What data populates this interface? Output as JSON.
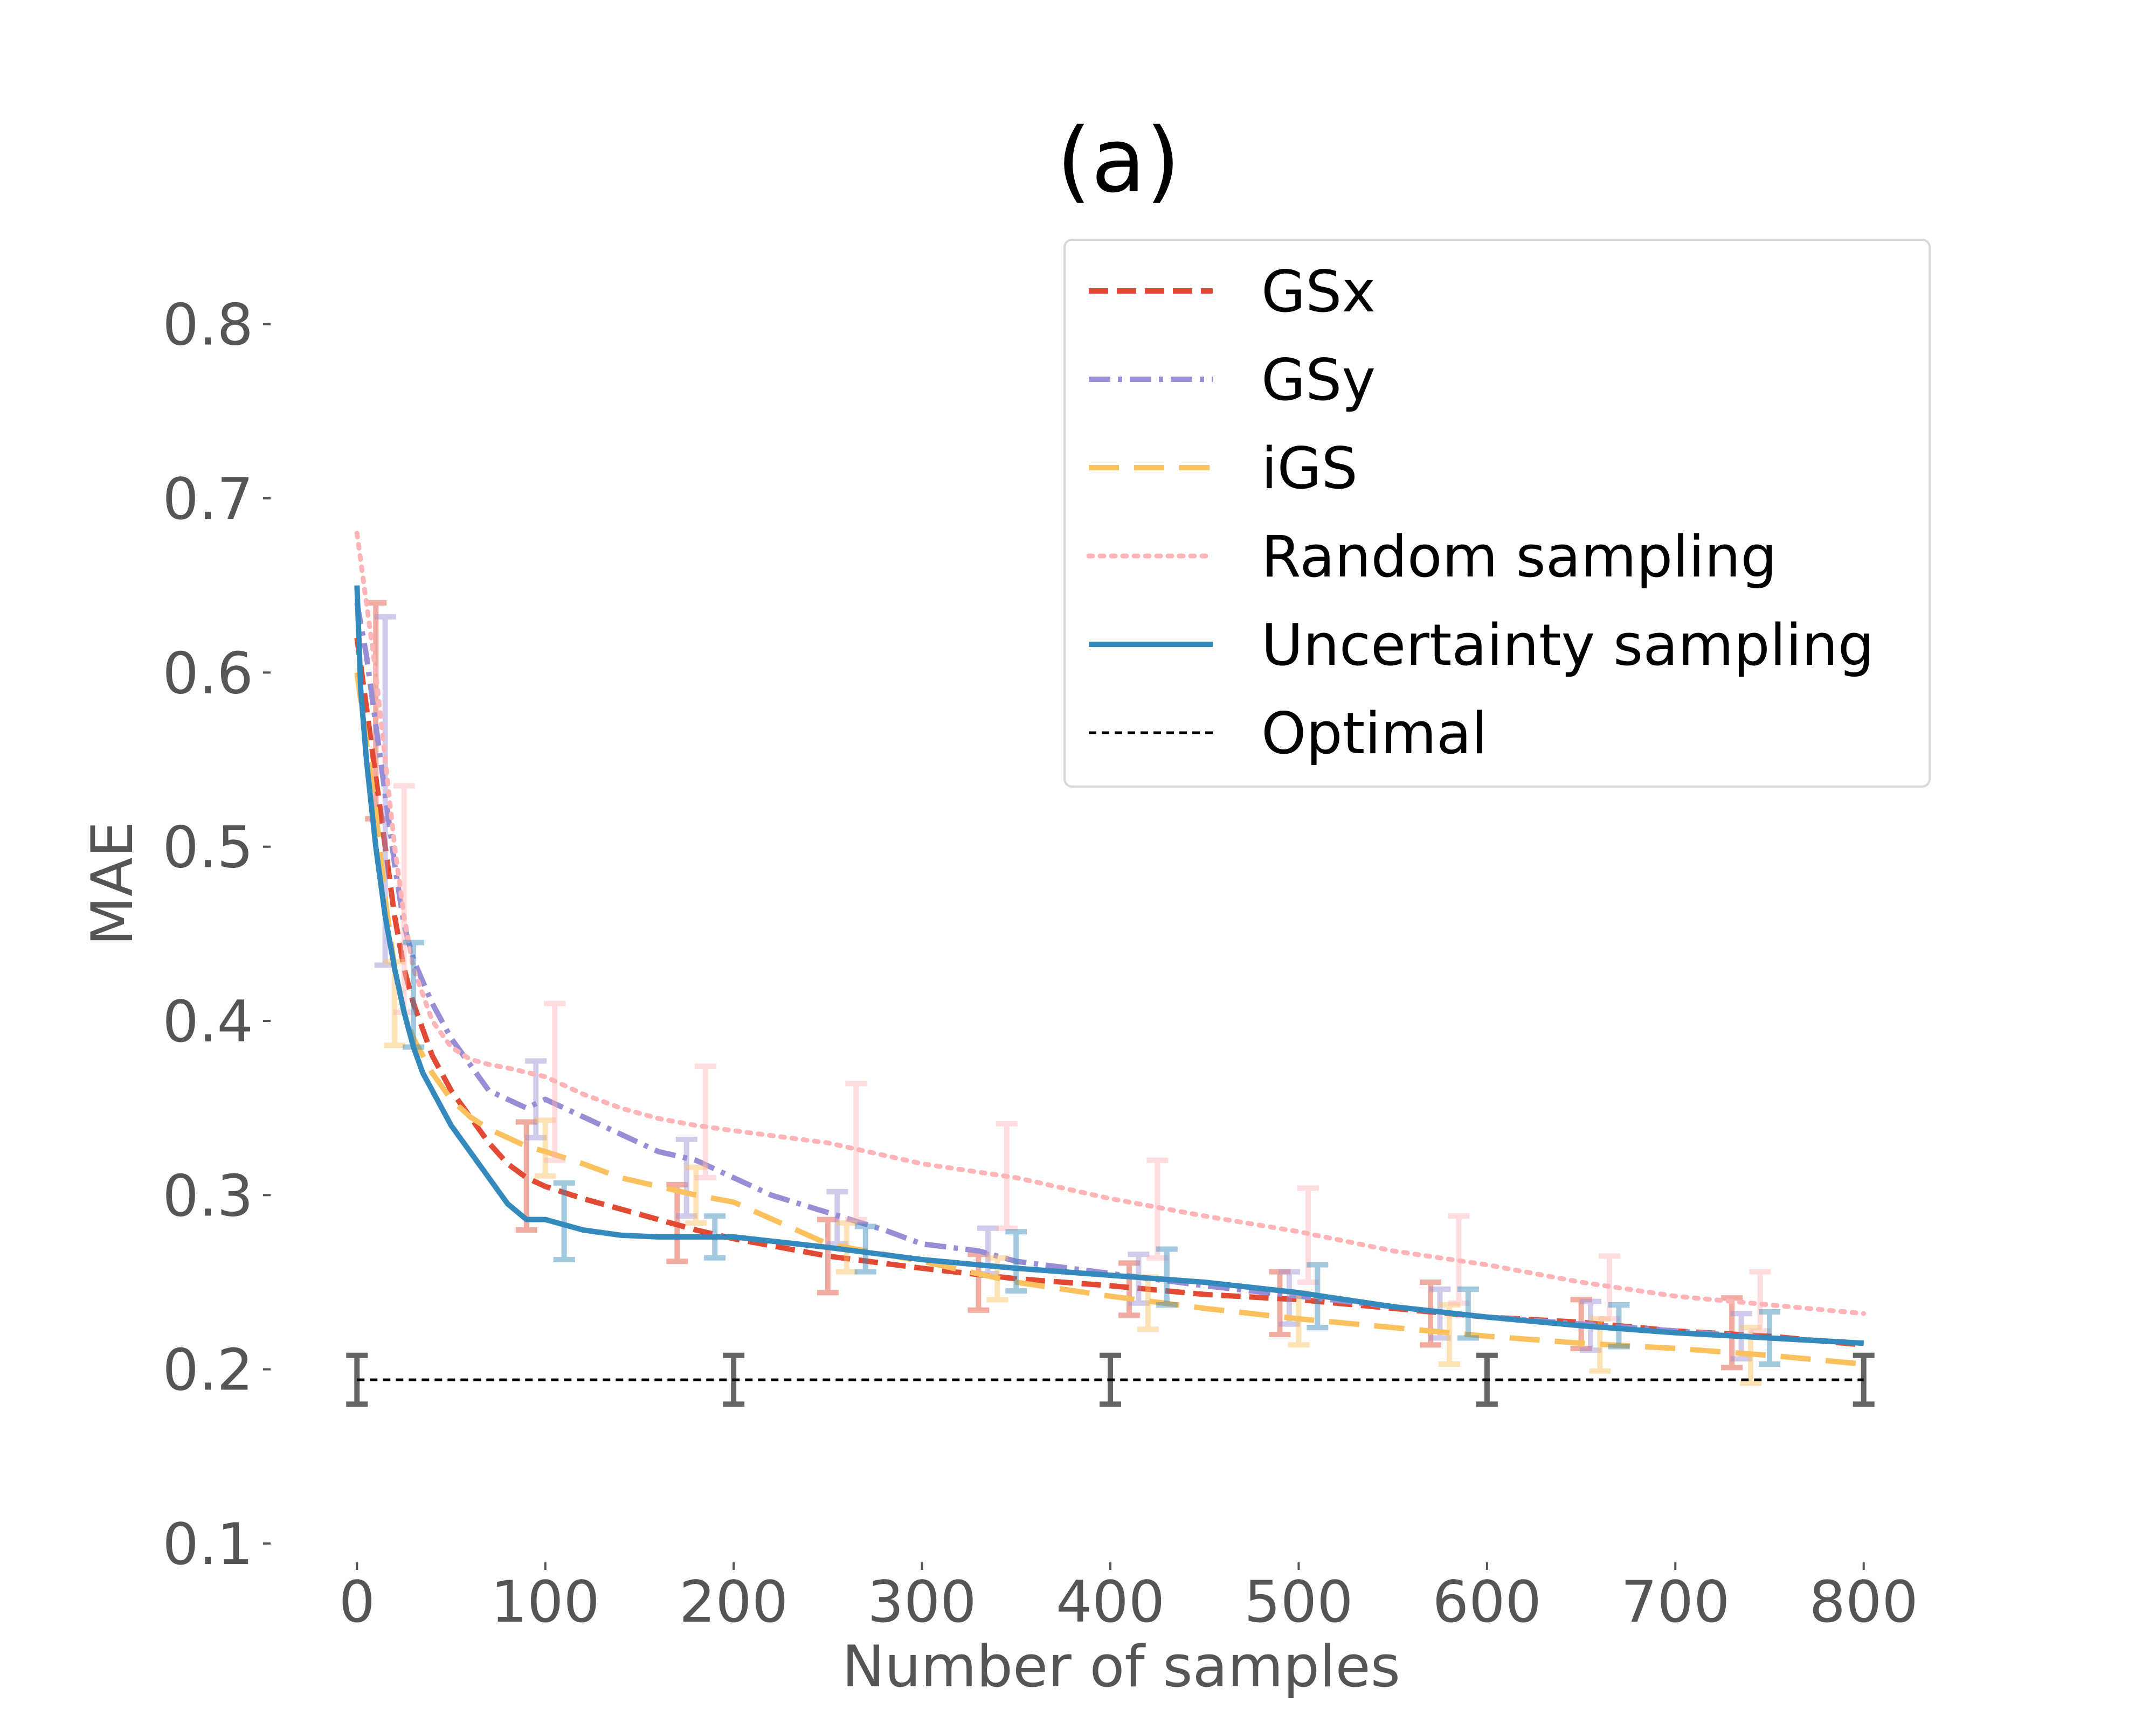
{
  "chart_data": {
    "type": "line",
    "title": "(a)",
    "xlabel": "Number of samples",
    "ylabel": "MAE",
    "xlim": [
      -35,
      835
    ],
    "ylim": [
      0.1,
      0.85
    ],
    "x_ticks": [
      0,
      100,
      200,
      300,
      400,
      500,
      600,
      700,
      800
    ],
    "y_ticks": [
      0.1,
      0.2,
      0.3,
      0.4,
      0.5,
      0.6,
      0.7,
      0.8
    ],
    "x_tick_labels": [
      "0",
      "100",
      "200",
      "300",
      "400",
      "500",
      "600",
      "700",
      "800"
    ],
    "y_tick_labels": [
      "0.1",
      "0.2",
      "0.3",
      "0.4",
      "0.5",
      "0.6",
      "0.7",
      "0.8"
    ],
    "grid": false,
    "legend_position": "upper right",
    "series": [
      {
        "name": "GSx",
        "color": "#E24A33",
        "dash": "dashed",
        "x": [
          0,
          5,
          10,
          15,
          20,
          25,
          30,
          40,
          50,
          60,
          70,
          80,
          90,
          100,
          120,
          140,
          160,
          180,
          200,
          250,
          300,
          350,
          400,
          450,
          500,
          550,
          600,
          650,
          700,
          750,
          800
        ],
        "y": [
          0.62,
          0.58,
          0.54,
          0.5,
          0.46,
          0.43,
          0.41,
          0.38,
          0.36,
          0.345,
          0.33,
          0.318,
          0.31,
          0.305,
          0.298,
          0.292,
          0.286,
          0.28,
          0.275,
          0.265,
          0.258,
          0.252,
          0.248,
          0.243,
          0.24,
          0.235,
          0.23,
          0.227,
          0.222,
          0.219,
          0.214
        ],
        "error_bars": [
          {
            "x": 10,
            "y": 0.578,
            "err": 0.062
          },
          {
            "x": 90,
            "y": 0.311,
            "err": 0.031
          },
          {
            "x": 170,
            "y": 0.284,
            "err": 0.022
          },
          {
            "x": 250,
            "y": 0.265,
            "err": 0.021
          },
          {
            "x": 330,
            "y": 0.25,
            "err": 0.016
          },
          {
            "x": 410,
            "y": 0.246,
            "err": 0.015
          },
          {
            "x": 490,
            "y": 0.238,
            "err": 0.018
          },
          {
            "x": 570,
            "y": 0.232,
            "err": 0.018
          },
          {
            "x": 650,
            "y": 0.226,
            "err": 0.014
          },
          {
            "x": 730,
            "y": 0.221,
            "err": 0.02
          }
        ]
      },
      {
        "name": "GSy",
        "color": "#988ED5",
        "dash": "dashdot",
        "x": [
          0,
          5,
          10,
          15,
          20,
          25,
          30,
          40,
          50,
          60,
          70,
          80,
          90,
          100,
          120,
          140,
          160,
          180,
          200,
          220,
          250,
          280,
          300,
          330,
          350,
          400,
          450,
          500,
          550,
          600,
          650,
          700,
          750,
          800
        ],
        "y": [
          0.64,
          0.61,
          0.57,
          0.53,
          0.49,
          0.455,
          0.435,
          0.41,
          0.39,
          0.375,
          0.36,
          0.355,
          0.35,
          0.355,
          0.345,
          0.335,
          0.325,
          0.32,
          0.31,
          0.3,
          0.29,
          0.28,
          0.272,
          0.268,
          0.262,
          0.255,
          0.248,
          0.242,
          0.236,
          0.23,
          0.226,
          0.222,
          0.218,
          0.215
        ],
        "error_bars": [
          {
            "x": 15,
            "y": 0.532,
            "err": 0.1
          },
          {
            "x": 95,
            "y": 0.355,
            "err": 0.022
          },
          {
            "x": 175,
            "y": 0.31,
            "err": 0.022
          },
          {
            "x": 255,
            "y": 0.287,
            "err": 0.015
          },
          {
            "x": 335,
            "y": 0.268,
            "err": 0.013
          },
          {
            "x": 415,
            "y": 0.252,
            "err": 0.014
          },
          {
            "x": 495,
            "y": 0.241,
            "err": 0.015
          },
          {
            "x": 575,
            "y": 0.232,
            "err": 0.014
          },
          {
            "x": 655,
            "y": 0.225,
            "err": 0.014
          },
          {
            "x": 735,
            "y": 0.219,
            "err": 0.013
          }
        ]
      },
      {
        "name": "iGS",
        "color": "#FBC15E",
        "dash": "longdash",
        "x": [
          0,
          5,
          10,
          15,
          20,
          25,
          30,
          40,
          50,
          60,
          70,
          80,
          90,
          100,
          120,
          140,
          160,
          180,
          200,
          250,
          300,
          350,
          400,
          450,
          500,
          550,
          600,
          650,
          700,
          750,
          800
        ],
        "y": [
          0.6,
          0.56,
          0.52,
          0.47,
          0.43,
          0.405,
          0.39,
          0.37,
          0.355,
          0.345,
          0.338,
          0.333,
          0.328,
          0.325,
          0.318,
          0.31,
          0.305,
          0.3,
          0.296,
          0.272,
          0.262,
          0.25,
          0.242,
          0.235,
          0.229,
          0.224,
          0.219,
          0.215,
          0.212,
          0.208,
          0.203
        ],
        "error_bars": [
          {
            "x": 20,
            "y": 0.41,
            "err": 0.024
          },
          {
            "x": 100,
            "y": 0.327,
            "err": 0.016
          },
          {
            "x": 180,
            "y": 0.3,
            "err": 0.016
          },
          {
            "x": 260,
            "y": 0.27,
            "err": 0.014
          },
          {
            "x": 340,
            "y": 0.252,
            "err": 0.012
          },
          {
            "x": 420,
            "y": 0.238,
            "err": 0.015
          },
          {
            "x": 500,
            "y": 0.229,
            "err": 0.015
          },
          {
            "x": 580,
            "y": 0.22,
            "err": 0.017
          },
          {
            "x": 660,
            "y": 0.214,
            "err": 0.015
          },
          {
            "x": 740,
            "y": 0.208,
            "err": 0.016
          }
        ]
      },
      {
        "name": "Random sampling",
        "color": "#FFB5B8",
        "dash": "dotted",
        "x": [
          0,
          5,
          10,
          15,
          20,
          25,
          30,
          40,
          50,
          60,
          70,
          80,
          100,
          120,
          140,
          160,
          180,
          200,
          250,
          300,
          350,
          400,
          450,
          500,
          550,
          600,
          650,
          700,
          750,
          800
        ],
        "y": [
          0.68,
          0.64,
          0.6,
          0.55,
          0.5,
          0.46,
          0.43,
          0.4,
          0.385,
          0.378,
          0.375,
          0.373,
          0.368,
          0.358,
          0.35,
          0.344,
          0.34,
          0.337,
          0.33,
          0.318,
          0.31,
          0.298,
          0.288,
          0.279,
          0.268,
          0.26,
          0.25,
          0.242,
          0.237,
          0.232
        ],
        "error_bars": [
          {
            "x": 25,
            "y": 0.47,
            "err": 0.065
          },
          {
            "x": 105,
            "y": 0.365,
            "err": 0.045
          },
          {
            "x": 185,
            "y": 0.342,
            "err": 0.032
          },
          {
            "x": 265,
            "y": 0.325,
            "err": 0.039
          },
          {
            "x": 345,
            "y": 0.311,
            "err": 0.03
          },
          {
            "x": 425,
            "y": 0.292,
            "err": 0.028
          },
          {
            "x": 505,
            "y": 0.277,
            "err": 0.027
          },
          {
            "x": 585,
            "y": 0.263,
            "err": 0.025
          },
          {
            "x": 665,
            "y": 0.247,
            "err": 0.018
          },
          {
            "x": 745,
            "y": 0.239,
            "err": 0.017
          }
        ]
      },
      {
        "name": "Uncertainty sampling",
        "color": "#348ABD",
        "dash": "solid",
        "x": [
          0,
          2,
          5,
          10,
          15,
          20,
          25,
          30,
          35,
          40,
          50,
          60,
          70,
          80,
          90,
          100,
          120,
          140,
          160,
          180,
          200,
          250,
          300,
          350,
          400,
          450,
          500,
          550,
          600,
          650,
          700,
          750,
          800
        ],
        "y": [
          0.65,
          0.59,
          0.55,
          0.5,
          0.46,
          0.43,
          0.405,
          0.385,
          0.37,
          0.36,
          0.34,
          0.325,
          0.31,
          0.295,
          0.286,
          0.286,
          0.28,
          0.277,
          0.276,
          0.276,
          0.276,
          0.27,
          0.263,
          0.258,
          0.254,
          0.25,
          0.244,
          0.236,
          0.23,
          0.225,
          0.221,
          0.218,
          0.215
        ],
        "error_bars": [
          {
            "x": 30,
            "y": 0.415,
            "err": 0.03
          },
          {
            "x": 110,
            "y": 0.285,
            "err": 0.022
          },
          {
            "x": 190,
            "y": 0.276,
            "err": 0.012
          },
          {
            "x": 270,
            "y": 0.269,
            "err": 0.013
          },
          {
            "x": 350,
            "y": 0.262,
            "err": 0.017
          },
          {
            "x": 430,
            "y": 0.253,
            "err": 0.016
          },
          {
            "x": 510,
            "y": 0.242,
            "err": 0.018
          },
          {
            "x": 590,
            "y": 0.232,
            "err": 0.014
          },
          {
            "x": 670,
            "y": 0.225,
            "err": 0.012
          },
          {
            "x": 750,
            "y": 0.218,
            "err": 0.015
          }
        ]
      },
      {
        "name": "Optimal",
        "color": "#000000",
        "dash": "shortdash",
        "x": [
          0,
          800
        ],
        "y": [
          0.194,
          0.194
        ],
        "error_color": "#555555",
        "error_bars": [
          {
            "x": 0,
            "y": 0.194,
            "err": 0.014
          },
          {
            "x": 200,
            "y": 0.194,
            "err": 0.014
          },
          {
            "x": 400,
            "y": 0.194,
            "err": 0.014
          },
          {
            "x": 600,
            "y": 0.194,
            "err": 0.014
          },
          {
            "x": 800,
            "y": 0.194,
            "err": 0.014
          }
        ]
      }
    ]
  }
}
